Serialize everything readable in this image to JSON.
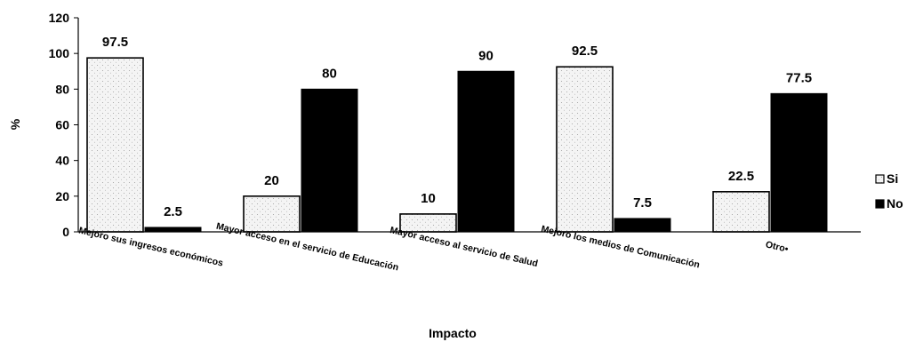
{
  "chart_data": {
    "type": "bar",
    "title": "",
    "xlabel": "Impacto",
    "ylabel": "%",
    "ylim": [
      0,
      120
    ],
    "yticks": [
      "0",
      "20",
      "40",
      "60",
      "80",
      "100",
      "120"
    ],
    "categories": [
      "Mejoro sus ingresos económicos",
      "Mayor acceso en el servicio  de Educación",
      "Mayor acceso al servicio de Salud",
      "Mejoro los medios de Comunicación",
      "Otro•"
    ],
    "series": [
      {
        "name": "Si",
        "values": [
          97.5,
          20,
          10,
          92.5,
          22.5
        ],
        "labels": [
          "97.5",
          "20",
          "10",
          "92.5",
          "22.5"
        ],
        "color": "#f2f2f2",
        "pattern": "dotted"
      },
      {
        "name": "No",
        "values": [
          2.5,
          80,
          90,
          7.5,
          77.5
        ],
        "labels": [
          "2.5",
          "80",
          "90",
          "7.5",
          "77.5"
        ],
        "color": "#000000"
      }
    ],
    "grid": false,
    "legend_position": "right"
  }
}
